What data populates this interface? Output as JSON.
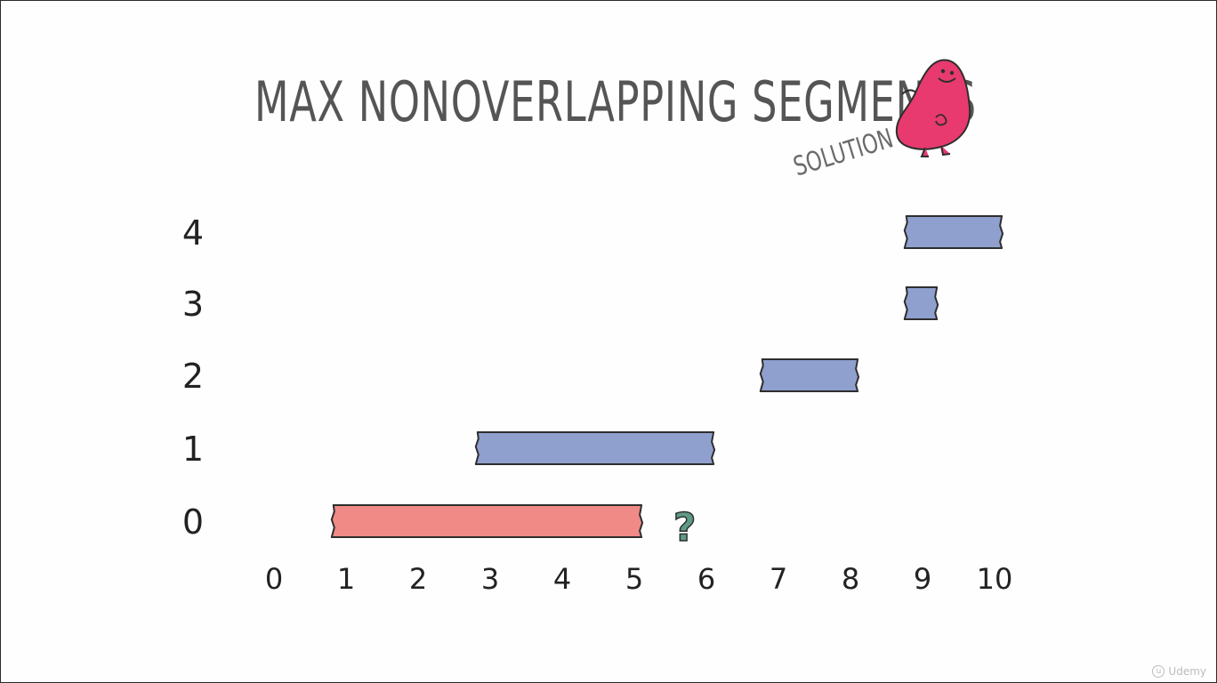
{
  "slide": {
    "title": "MAX NONOVERLAPPING SEGMENTS",
    "subtitle": "SOLUTION",
    "annotation": "?",
    "watermark": "Udemy"
  },
  "colors": {
    "segment_blue": "#8fa0cf",
    "segment_red": "#f08a86",
    "outline": "#2e2e2e",
    "question_mark": "#5e9b86",
    "mascot": "#e83a6e"
  },
  "icons": {
    "mascot": "pink-blob-mascot-icon",
    "watermark": "udemy-logo-icon"
  },
  "chart_data": {
    "type": "bar",
    "orientation": "horizontal-intervals",
    "x_ticks": [
      "0",
      "1",
      "2",
      "3",
      "4",
      "5",
      "6",
      "7",
      "8",
      "9",
      "10"
    ],
    "xlim": [
      0,
      10
    ],
    "segments": [
      {
        "id": "0",
        "start": 0.8,
        "end": 5.1,
        "color": "red"
      },
      {
        "id": "1",
        "start": 2.8,
        "end": 6.1,
        "color": "blue"
      },
      {
        "id": "2",
        "start": 6.75,
        "end": 8.1,
        "color": "blue"
      },
      {
        "id": "3",
        "start": 8.75,
        "end": 9.2,
        "color": "blue"
      },
      {
        "id": "4",
        "start": 8.75,
        "end": 10.1,
        "color": "blue"
      }
    ],
    "annotation": {
      "text": "?",
      "x": 5.7,
      "segment": "0"
    }
  }
}
